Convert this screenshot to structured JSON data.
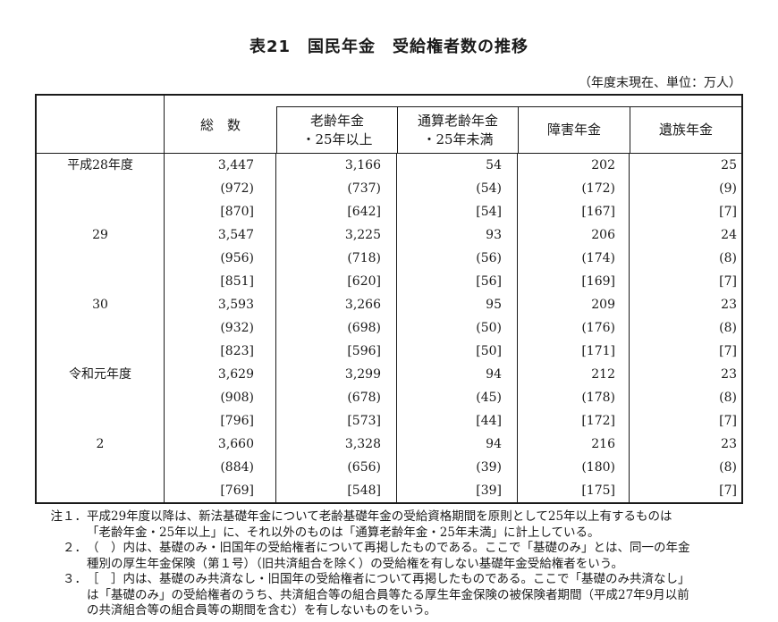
{
  "page": {
    "title": "表21　国民年金　受給権者数の推移",
    "subtitle": "（年度末現在、単位：万人）"
  },
  "colors": {
    "ink": "#1a1a1a",
    "paper": "#ffffff"
  },
  "table": {
    "headers": [
      {
        "lines": [
          ""
        ]
      },
      {
        "lines": [
          "総　数"
        ]
      },
      {
        "lines": [
          "老齢年金",
          "・25年以上"
        ]
      },
      {
        "lines": [
          "通算老齢年金",
          "・25年未満"
        ]
      },
      {
        "lines": [
          "障害年金"
        ]
      },
      {
        "lines": [
          "遺族年金"
        ]
      }
    ],
    "groups": [
      {
        "year": "平成28年度",
        "rows": [
          [
            "3,447",
            "3,166",
            "54",
            "202",
            "25"
          ],
          [
            "(972)",
            "(737)",
            "(54)",
            "(172)",
            "(9)"
          ],
          [
            "[870]",
            "[642]",
            "[54]",
            "[167]",
            "[7]"
          ]
        ]
      },
      {
        "year": "29",
        "rows": [
          [
            "3,547",
            "3,225",
            "93",
            "206",
            "24"
          ],
          [
            "(956)",
            "(718)",
            "(56)",
            "(174)",
            "(8)"
          ],
          [
            "[851]",
            "[620]",
            "[56]",
            "[169]",
            "[7]"
          ]
        ]
      },
      {
        "year": "30",
        "rows": [
          [
            "3,593",
            "3,266",
            "95",
            "209",
            "23"
          ],
          [
            "(932)",
            "(698)",
            "(50)",
            "(176)",
            "(8)"
          ],
          [
            "[823]",
            "[596]",
            "[50]",
            "[171]",
            "[7]"
          ]
        ]
      },
      {
        "year": "令和元年度",
        "rows": [
          [
            "3,629",
            "3,299",
            "94",
            "212",
            "23"
          ],
          [
            "(908)",
            "(678)",
            "(45)",
            "(178)",
            "(8)"
          ],
          [
            "[796]",
            "[573]",
            "[44]",
            "[172]",
            "[7]"
          ]
        ]
      },
      {
        "year": "2",
        "rows": [
          [
            "3,660",
            "3,328",
            "94",
            "216",
            "23"
          ],
          [
            "(884)",
            "(656)",
            "(39)",
            "(180)",
            "(8)"
          ],
          [
            "[769]",
            "[548]",
            "[39]",
            "[175]",
            "[7]"
          ]
        ]
      }
    ]
  },
  "notes": [
    {
      "marker": "注１．",
      "text": "平成29年度以降は、新法基礎年金について老齢基礎年金の受給資格期間を原則として25年以上有するものは"
    },
    {
      "marker": "",
      "text": "「老齢年金・25年以上」に、それ以外のものは「通算老齢年金・25年未満」に計上している。"
    },
    {
      "marker": "２．",
      "text": "（　）内は、基礎のみ・旧国年の受給権者について再掲したものである。ここで「基礎のみ」とは、同一の年金"
    },
    {
      "marker": "",
      "text": "種別の厚生年金保険（第１号）（旧共済組合を除く）の受給権を有しない基礎年金受給権者をいう。"
    },
    {
      "marker": "３．",
      "text": "［　］内は、基礎のみ共済なし・旧国年の受給権者について再掲したものである。ここで「基礎のみ共済なし」"
    },
    {
      "marker": "",
      "text": "は「基礎のみ」の受給権者のうち、共済組合等の組合員等たる厚生年金保険の被保険者期間（平成27年9月以前"
    },
    {
      "marker": "",
      "text": "の共済組合等の組合員等の期間を含む）を有しないものをいう。"
    }
  ]
}
